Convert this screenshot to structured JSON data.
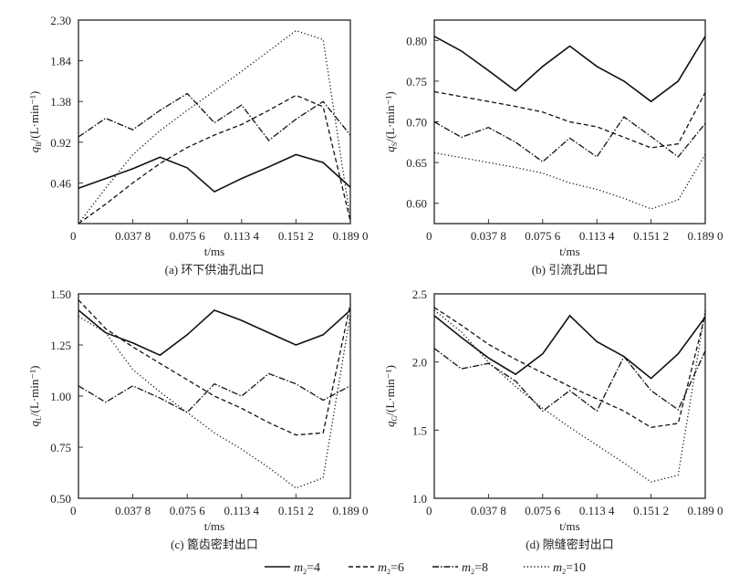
{
  "chart_data": [
    {
      "type": "line",
      "caption": "(a) 环下供油孔出口",
      "ylabel_sym": "q",
      "ylabel_sub": "B",
      "ylabel_unit": "/(L·min⁻¹)",
      "xlabel": "t/ms",
      "xlim": [
        0,
        0.189
      ],
      "ylim": [
        0,
        2.3
      ],
      "xticks": [
        0,
        0.0378,
        0.0756,
        0.1134,
        0.1512,
        0.189
      ],
      "xtick_labels": [
        "0",
        "0.037 8",
        "0.075 6",
        "0.113 4",
        "0.151 2",
        "0.189 0"
      ],
      "yticks": [
        0.46,
        0.92,
        1.38,
        1.84,
        2.3
      ],
      "ytick_labels": [
        "0.46",
        "0.92",
        "1.38",
        "1.84",
        "2.30"
      ],
      "x": [
        0,
        0.0189,
        0.0378,
        0.0567,
        0.0756,
        0.0945,
        0.1134,
        0.1323,
        0.1512,
        0.1701,
        0.189
      ],
      "series": [
        {
          "name": "m2=4",
          "values": [
            0.4,
            0.51,
            0.62,
            0.75,
            0.63,
            0.36,
            0.51,
            0.64,
            0.78,
            0.69,
            0.41
          ]
        },
        {
          "name": "m2=6",
          "values": [
            0.0,
            0.22,
            0.46,
            0.68,
            0.86,
            1.0,
            1.12,
            1.28,
            1.45,
            1.32,
            0.03
          ]
        },
        {
          "name": "m2=8",
          "values": [
            0.98,
            1.19,
            1.06,
            1.28,
            1.47,
            1.14,
            1.34,
            0.94,
            1.18,
            1.38,
            1.0
          ]
        },
        {
          "name": "m2=10",
          "values": [
            0.0,
            0.4,
            0.78,
            1.05,
            1.28,
            1.5,
            1.72,
            1.95,
            2.18,
            2.08,
            0.05
          ]
        }
      ]
    },
    {
      "type": "line",
      "caption": "(b) 引流孔出口",
      "ylabel_sym": "q",
      "ylabel_sub": "S",
      "ylabel_unit": "/(L·min⁻¹)",
      "xlabel": "t/ms",
      "xlim": [
        0,
        0.189
      ],
      "ylim": [
        0.575,
        0.825
      ],
      "xticks": [
        0,
        0.0378,
        0.0756,
        0.1134,
        0.1512,
        0.189
      ],
      "xtick_labels": [
        "0",
        "0.037 8",
        "0.075 6",
        "0.113 4",
        "0.151 2",
        "0.189 0"
      ],
      "yticks": [
        0.6,
        0.65,
        0.7,
        0.75,
        0.8
      ],
      "ytick_labels": [
        "0.60",
        "0.65",
        "0.70",
        "0.75",
        "0.80"
      ],
      "x": [
        0,
        0.0189,
        0.0378,
        0.0567,
        0.0756,
        0.0945,
        0.1134,
        0.1323,
        0.1512,
        0.1701,
        0.189
      ],
      "series": [
        {
          "name": "m2=4",
          "values": [
            0.805,
            0.787,
            0.763,
            0.738,
            0.768,
            0.793,
            0.768,
            0.75,
            0.725,
            0.75,
            0.805
          ]
        },
        {
          "name": "m2=6",
          "values": [
            0.737,
            0.731,
            0.725,
            0.719,
            0.712,
            0.7,
            0.694,
            0.681,
            0.668,
            0.673,
            0.736
          ]
        },
        {
          "name": "m2=8",
          "values": [
            0.7,
            0.681,
            0.693,
            0.675,
            0.651,
            0.68,
            0.657,
            0.706,
            0.682,
            0.657,
            0.698
          ]
        },
        {
          "name": "m2=10",
          "values": [
            0.662,
            0.656,
            0.65,
            0.644,
            0.637,
            0.625,
            0.617,
            0.606,
            0.593,
            0.604,
            0.66
          ]
        }
      ]
    },
    {
      "type": "line",
      "caption": "(c) 篦齿密封出口",
      "ylabel_sym": "q",
      "ylabel_sub": "L",
      "ylabel_unit": "/(L·min⁻¹)",
      "xlabel": "t/ms",
      "xlim": [
        0,
        0.189
      ],
      "ylim": [
        0.5,
        1.5
      ],
      "xticks": [
        0,
        0.0378,
        0.0756,
        0.1134,
        0.1512,
        0.189
      ],
      "xtick_labels": [
        "0",
        "0.037 8",
        "0.075 6",
        "0.113 4",
        "0.151 2",
        "0.189 0"
      ],
      "yticks": [
        0.5,
        0.75,
        1.0,
        1.25,
        1.5
      ],
      "ytick_labels": [
        "0.50",
        "0.75",
        "1.00",
        "1.25",
        "1.50"
      ],
      "x": [
        0,
        0.0189,
        0.0378,
        0.0567,
        0.0756,
        0.0945,
        0.1134,
        0.1323,
        0.1512,
        0.1701,
        0.189
      ],
      "series": [
        {
          "name": "m2=4",
          "values": [
            1.42,
            1.31,
            1.26,
            1.2,
            1.3,
            1.42,
            1.37,
            1.31,
            1.25,
            1.3,
            1.42
          ]
        },
        {
          "name": "m2=6",
          "values": [
            1.47,
            1.33,
            1.24,
            1.16,
            1.08,
            1.0,
            0.94,
            0.87,
            0.81,
            0.82,
            1.45
          ]
        },
        {
          "name": "m2=8",
          "values": [
            1.05,
            0.97,
            1.05,
            0.99,
            0.92,
            1.06,
            1.0,
            1.11,
            1.06,
            0.98,
            1.05
          ]
        },
        {
          "name": "m2=10",
          "values": [
            1.39,
            1.31,
            1.13,
            1.02,
            0.92,
            0.82,
            0.74,
            0.65,
            0.55,
            0.6,
            1.4
          ]
        }
      ]
    },
    {
      "type": "line",
      "caption": "(d) 隙缝密封出口",
      "ylabel_sym": "q",
      "ylabel_sub": "G",
      "ylabel_unit": "/(L·min⁻¹)",
      "xlabel": "t/ms",
      "xlim": [
        0,
        0.189
      ],
      "ylim": [
        1.0,
        2.5
      ],
      "xticks": [
        0,
        0.0378,
        0.0756,
        0.1134,
        0.1512,
        0.189
      ],
      "xtick_labels": [
        "0",
        "0.037 8",
        "0.075 6",
        "0.113 4",
        "0.151 2",
        "0.189 0"
      ],
      "yticks": [
        1.0,
        1.5,
        2.0,
        2.5
      ],
      "ytick_labels": [
        "1.0",
        "1.5",
        "2.0",
        "2.5"
      ],
      "x": [
        0,
        0.0189,
        0.0378,
        0.0567,
        0.0756,
        0.0945,
        0.1134,
        0.1323,
        0.1512,
        0.1701,
        0.189
      ],
      "series": [
        {
          "name": "m2=4",
          "values": [
            2.34,
            2.18,
            2.03,
            1.91,
            2.06,
            2.34,
            2.15,
            2.04,
            1.88,
            2.06,
            2.33
          ]
        },
        {
          "name": "m2=6",
          "values": [
            2.4,
            2.27,
            2.13,
            2.02,
            1.92,
            1.82,
            1.73,
            1.64,
            1.52,
            1.55,
            2.35
          ]
        },
        {
          "name": "m2=8",
          "values": [
            2.1,
            1.95,
            1.99,
            1.86,
            1.64,
            1.79,
            1.64,
            2.04,
            1.79,
            1.65,
            2.08
          ]
        },
        {
          "name": "m2=10",
          "values": [
            2.38,
            2.22,
            2.0,
            1.82,
            1.66,
            1.52,
            1.39,
            1.26,
            1.12,
            1.17,
            2.38
          ]
        }
      ]
    }
  ],
  "legend": {
    "placement": "bottom-center",
    "items": [
      {
        "sym": "m",
        "sub": "2",
        "value": "=4"
      },
      {
        "sym": "m",
        "sub": "2",
        "value": "=6"
      },
      {
        "sym": "m",
        "sub": "2",
        "value": "=8"
      },
      {
        "sym": "m",
        "sub": "2",
        "value": "=10"
      }
    ]
  }
}
